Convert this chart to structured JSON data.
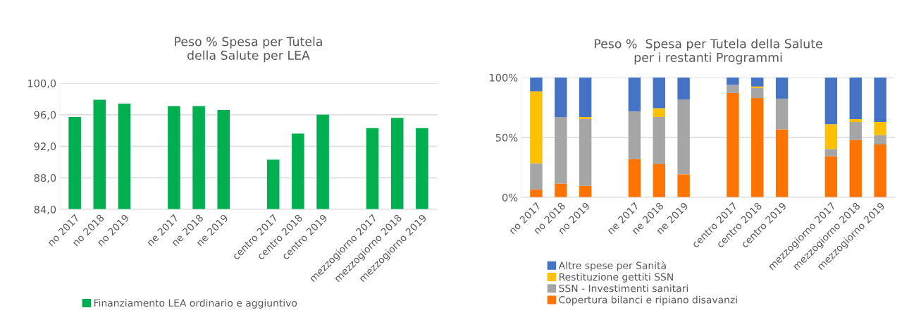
{
  "chart_data": [
    {
      "type": "bar",
      "title": "Peso % Spesa per Tutela\ndella Salute per LEA",
      "categories": [
        "no 2017",
        "no 2018",
        "no 2019",
        null,
        "ne 2017",
        "ne 2018",
        "ne 2019",
        null,
        "centro 2017",
        "centro 2018",
        "centro 2019",
        null,
        "mezzogiorno 2017",
        "mezzogiorno 2018",
        "mezzogiorno 2019"
      ],
      "series": [
        {
          "name": "Finanziamento LEA ordinario e aggiuntivo",
          "color": "#00b050",
          "values": [
            95.7,
            97.9,
            97.4,
            null,
            97.1,
            97.1,
            96.6,
            null,
            90.3,
            93.6,
            96.0,
            null,
            94.3,
            95.6,
            94.3
          ]
        }
      ],
      "ylim": [
        84,
        100
      ],
      "yticks": [
        {
          "value": 84,
          "label": "84,0"
        },
        {
          "value": 88,
          "label": "88,0"
        },
        {
          "value": 92,
          "label": "92,0"
        },
        {
          "value": 96,
          "label": "96,0"
        },
        {
          "value": 100,
          "label": "100,0"
        }
      ],
      "grid": "y",
      "legend": "bottom"
    },
    {
      "type": "bar",
      "title": "Peso %  Spesa per Tutela della Salute\nper i restanti Programmi",
      "stacked": true,
      "categories": [
        "no 2017",
        "no 2018",
        "no 2019",
        null,
        "ne 2017",
        "ne 2018",
        "ne 2019",
        null,
        "centro 2017",
        "centro 2018",
        "centro 2019",
        null,
        "mezzogiorno 2017",
        "mezzogiorno 2018",
        "mezzogiorno 2019"
      ],
      "series": [
        {
          "name": "Copertura bilanci e ripiano disavanzi",
          "color": "#ff7300",
          "values": [
            6.6,
            11.5,
            9.6,
            null,
            31.9,
            27.7,
            19.2,
            null,
            87.1,
            82.9,
            56.8,
            null,
            34.3,
            47.9,
            44.1
          ]
        },
        {
          "name": "SSN - Investimenti sanitari",
          "color": "#a5a5a5",
          "values": [
            21.8,
            55.6,
            55.7,
            null,
            39.9,
            39.4,
            62.5,
            null,
            6.8,
            8.4,
            25.6,
            null,
            6.1,
            15.0,
            7.8
          ]
        },
        {
          "name": "Restituzione gettiti SSN",
          "color": "#ffc000",
          "values": [
            60.1,
            0,
            1.8,
            null,
            0,
            7.3,
            0,
            null,
            0,
            1.2,
            0,
            null,
            20.6,
            2.4,
            11.0
          ]
        },
        {
          "name": "Altre spese per Sanità",
          "color": "#4472c4",
          "values": [
            11.5,
            32.9,
            32.9,
            null,
            28.2,
            25.6,
            18.3,
            null,
            6.1,
            7.5,
            17.6,
            null,
            39.0,
            34.7,
            37.1
          ]
        }
      ],
      "ylim": [
        0,
        100
      ],
      "yticks": [
        {
          "value": 0,
          "label": "0%"
        },
        {
          "value": 50,
          "label": "50%"
        },
        {
          "value": 100,
          "label": "100%"
        }
      ],
      "grid": "y",
      "legend": "bottom"
    }
  ]
}
